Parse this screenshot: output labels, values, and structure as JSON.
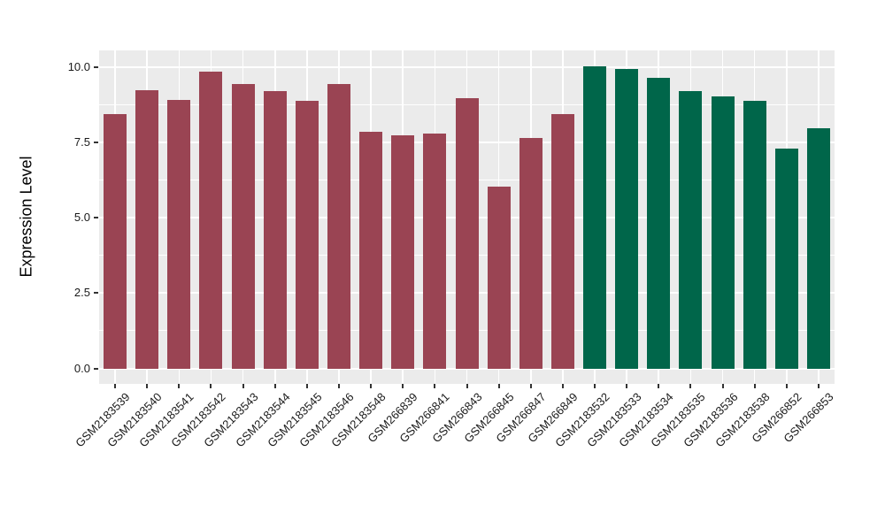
{
  "figure": {
    "background_color": "#FFFFFF",
    "panel_background_color": "#EBEBEB",
    "gridline_color": "#FFFFFF",
    "axis_text_color": "#1a1a1a",
    "tick_mark_color": "#333333"
  },
  "chart_data": {
    "type": "bar",
    "title": "",
    "xlabel": "",
    "ylabel": "Expression Level",
    "ylim": [
      -0.51,
      10.53
    ],
    "yticks": [
      0.0,
      2.5,
      5.0,
      7.5,
      10.0
    ],
    "ytick_labels": [
      "0.0",
      "2.5",
      "5.0",
      "7.5",
      "10.0"
    ],
    "minor_yticks": [
      1.25,
      3.75,
      6.25,
      8.75
    ],
    "grid": "on",
    "legend": "none",
    "categories": [
      "GSM2183539",
      "GSM2183540",
      "GSM2183541",
      "GSM2183542",
      "GSM2183543",
      "GSM2183544",
      "GSM2183545",
      "GSM2183546",
      "GSM2183548",
      "GSM266839",
      "GSM266841",
      "GSM266843",
      "GSM266845",
      "GSM266847",
      "GSM266849",
      "GSM2183532",
      "GSM2183533",
      "GSM2183534",
      "GSM2183535",
      "GSM2183536",
      "GSM2183538",
      "GSM266852",
      "GSM266853"
    ],
    "values": [
      8.43,
      9.23,
      8.92,
      9.84,
      9.43,
      9.21,
      8.89,
      9.45,
      7.85,
      7.74,
      7.8,
      8.97,
      6.04,
      7.64,
      8.43,
      10.04,
      9.95,
      9.66,
      9.21,
      9.02,
      8.89,
      7.29,
      7.98
    ],
    "groups": [
      "group1",
      "group1",
      "group1",
      "group1",
      "group1",
      "group1",
      "group1",
      "group1",
      "group1",
      "group1",
      "group1",
      "group1",
      "group1",
      "group1",
      "group1",
      "group2",
      "group2",
      "group2",
      "group2",
      "group2",
      "group2",
      "group2",
      "group2"
    ],
    "group_colors": {
      "group1": "#9A4453",
      "group2": "#00664A"
    }
  }
}
